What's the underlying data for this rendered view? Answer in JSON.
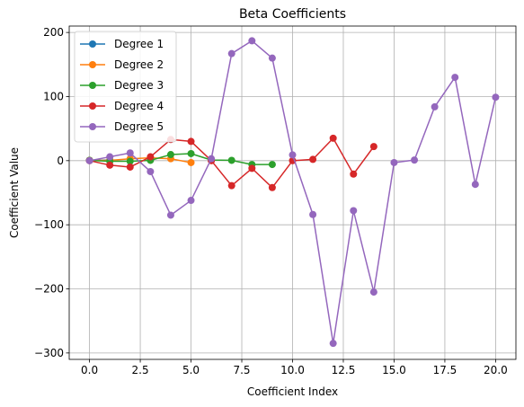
{
  "chart_data": {
    "type": "line",
    "title": "Beta Coefficients",
    "xlabel": "Coefficient Index",
    "ylabel": "Coefficient Value",
    "xlim": [
      -1,
      21
    ],
    "ylim": [
      -310,
      210
    ],
    "xticks": [
      0.0,
      2.5,
      5.0,
      7.5,
      10.0,
      12.5,
      15.0,
      17.5,
      20.0
    ],
    "xtick_labels": [
      "0.0",
      "2.5",
      "5.0",
      "7.5",
      "10.0",
      "12.5",
      "15.0",
      "17.5",
      "20.0"
    ],
    "yticks": [
      -300,
      -200,
      -100,
      0,
      100,
      200
    ],
    "ytick_labels": [
      "−300",
      "−200",
      "−100",
      "0",
      "100",
      "200"
    ],
    "grid": true,
    "legend_position": "top-left",
    "markers": "circle",
    "series": [
      {
        "name": "Degree 1",
        "color": "#1f77b4",
        "x": [
          0,
          1
        ],
        "y": [
          0.5,
          1.0
        ]
      },
      {
        "name": "Degree 2",
        "color": "#ff7f0e",
        "x": [
          0,
          1,
          2,
          3,
          4,
          5
        ],
        "y": [
          0.5,
          0.5,
          3.0,
          4.5,
          3.0,
          -3.0
        ]
      },
      {
        "name": "Degree 3",
        "color": "#2ca02c",
        "x": [
          0,
          1,
          2,
          3,
          4,
          5,
          6,
          7,
          8,
          9
        ],
        "y": [
          0.5,
          -1.0,
          -1.0,
          0.5,
          9.5,
          11.0,
          1.0,
          0.5,
          -6.0,
          -6.0
        ]
      },
      {
        "name": "Degree 4",
        "color": "#d62728",
        "x": [
          0,
          1,
          2,
          3,
          4,
          5,
          6,
          7,
          8,
          9,
          10,
          11,
          12,
          13,
          14
        ],
        "y": [
          0.0,
          -7.0,
          -10.0,
          6.0,
          33.0,
          30.0,
          0.0,
          -39.0,
          -12.0,
          -42.0,
          0.0,
          2.0,
          35.0,
          -21.0,
          22.0
        ]
      },
      {
        "name": "Degree 5",
        "color": "#9467bd",
        "x": [
          0,
          1,
          2,
          3,
          4,
          5,
          6,
          7,
          8,
          9,
          10,
          11,
          12,
          13,
          14,
          15,
          16,
          17,
          18,
          19,
          20
        ],
        "y": [
          0.0,
          6.0,
          12.0,
          -17.0,
          -85.0,
          -62.0,
          3.0,
          167.0,
          187.0,
          160.0,
          9.0,
          -84.0,
          -285.0,
          -78.0,
          -205.0,
          -3.0,
          1.0,
          84.0,
          130.0,
          -37.0,
          99.0
        ]
      }
    ]
  }
}
